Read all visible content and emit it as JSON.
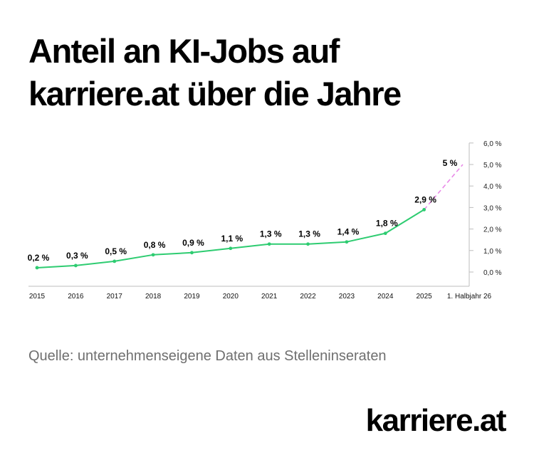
{
  "header": {
    "title_line1": "Anteil an KI-Jobs auf",
    "title_line2": "karriere.at über die Jahre"
  },
  "footer": {
    "source": "Quelle: unternehmenseigene Daten aus Stelleninseraten",
    "logo": "karriere.at"
  },
  "colors": {
    "line": "#2ecc71",
    "projection": "#e98ae8",
    "axis": "#bdbdbd"
  },
  "chart_data": {
    "type": "line",
    "categories": [
      "2015",
      "2016",
      "2017",
      "2018",
      "2019",
      "2020",
      "2021",
      "2022",
      "2023",
      "2024",
      "2025",
      "1. Halbjahr 26"
    ],
    "series": [
      {
        "values": [
          0.2,
          0.3,
          0.5,
          0.8,
          0.9,
          1.1,
          1.3,
          1.3,
          1.4,
          1.8,
          2.9,
          5
        ],
        "labels": [
          "0,2 %",
          "0,3 %",
          "0,5 %",
          "0,8 %",
          "0,9 %",
          "1,1 %",
          "1,3 %",
          "1,3 %",
          "1,4 %",
          "1,8 %",
          "2,9 %",
          "5 %"
        ],
        "projected_from_index": 10
      }
    ],
    "y_ticks": [
      0,
      1,
      2,
      3,
      4,
      5,
      6
    ],
    "y_tick_labels": [
      "0,0 %",
      "1,0 %",
      "2,0 %",
      "3,0 %",
      "4,0 %",
      "5,0 %",
      "6,0 %"
    ],
    "y_axis_position": "right",
    "grid": false
  }
}
